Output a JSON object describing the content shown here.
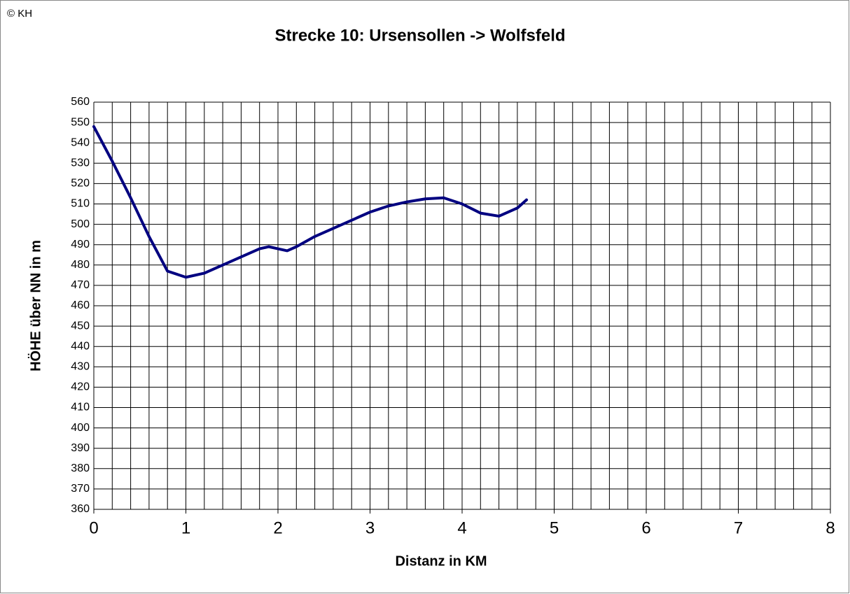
{
  "chart_data": {
    "type": "line",
    "title": "Strecke 10:  Ursensollen -> Wolfsfeld",
    "copyright": "© KH",
    "x_label": "Distanz in KM",
    "y_label": "HÖHE über NN in m",
    "x": [
      0,
      0.2,
      0.4,
      0.6,
      0.8,
      1.0,
      1.2,
      1.4,
      1.6,
      1.8,
      1.9,
      2.0,
      2.1,
      2.2,
      2.4,
      2.6,
      2.8,
      3.0,
      3.2,
      3.4,
      3.6,
      3.8,
      4.0,
      4.2,
      4.4,
      4.6,
      4.7
    ],
    "series": [
      {
        "color": "#000080",
        "values": [
          548,
          531,
          513,
          494,
          477,
          474,
          476,
          480,
          484,
          488,
          489,
          488,
          487,
          489,
          494,
          498,
          502,
          506,
          509,
          511,
          512.5,
          513,
          510,
          505.5,
          504,
          508,
          512
        ]
      }
    ],
    "xlim": [
      0,
      8
    ],
    "xticks": [
      0,
      1,
      2,
      3,
      4,
      5,
      6,
      7,
      8
    ],
    "xminorticks": [
      0.2,
      0.4,
      0.6,
      0.8,
      1.2,
      1.4,
      1.6,
      1.8,
      2.2,
      2.4,
      2.6,
      2.8,
      3.2,
      3.4,
      3.6,
      3.8,
      4.2,
      4.4,
      4.6,
      4.8,
      5.2,
      5.4,
      5.6,
      5.8,
      6.2,
      6.4,
      6.6,
      6.8,
      7.2,
      7.4,
      7.6,
      7.8
    ],
    "ylim": [
      360,
      560
    ],
    "yticks": [
      360,
      370,
      380,
      390,
      400,
      410,
      420,
      430,
      440,
      450,
      460,
      470,
      480,
      490,
      500,
      510,
      520,
      530,
      540,
      550,
      560
    ],
    "grid": true
  }
}
